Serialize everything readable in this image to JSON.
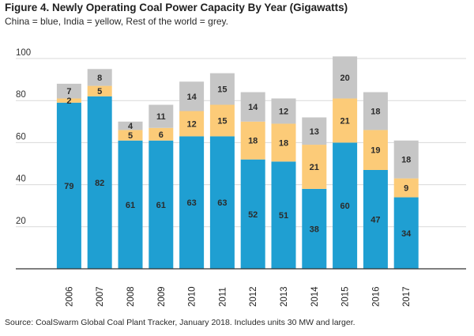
{
  "title": "Figure 4. Newly Operating Coal Power Capacity By Year (Gigawatts)",
  "subtitle": "China = blue, India = yellow, Rest of the world = grey.",
  "source": "Source: CoalSwarm Global Coal Plant Tracker, January 2018. Includes units 30 MW and larger.",
  "colors": {
    "china": "#1f9fd2",
    "india": "#fccb78",
    "rest": "#c6c6c6"
  },
  "chart_data": {
    "type": "bar",
    "stacked": true,
    "title": "Figure 4. Newly Operating Coal Power Capacity By Year (Gigawatts)",
    "categories": [
      "2006",
      "2007",
      "2008",
      "2009",
      "2010",
      "2011",
      "2012",
      "2013",
      "2014",
      "2015",
      "2016",
      "2017"
    ],
    "series": [
      {
        "key": "china",
        "values": [
          79,
          82,
          61,
          61,
          63,
          63,
          52,
          51,
          38,
          60,
          47,
          34
        ]
      },
      {
        "key": "india",
        "values": [
          2,
          5,
          5,
          6,
          12,
          15,
          18,
          18,
          21,
          21,
          19,
          9
        ]
      },
      {
        "key": "rest",
        "values": [
          7,
          8,
          4,
          11,
          14,
          15,
          14,
          12,
          13,
          20,
          18,
          18
        ]
      }
    ],
    "ylim": [
      0,
      100
    ],
    "yticks": [
      20,
      40,
      60,
      80,
      100
    ],
    "grid": true,
    "legend": "none"
  }
}
